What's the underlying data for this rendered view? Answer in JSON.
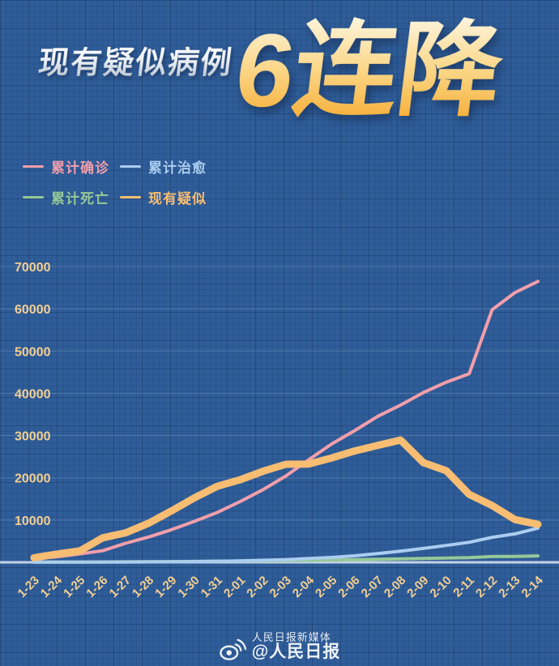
{
  "header": {
    "subtitle": "现有疑似病例",
    "headline": "6连降"
  },
  "legend": [
    {
      "key": "confirmed",
      "label": "累计确诊",
      "color": "#f29fab"
    },
    {
      "key": "cured",
      "label": "累计治愈",
      "color": "#abcdf0"
    },
    {
      "key": "deaths",
      "label": "累计死亡",
      "color": "#95c897"
    },
    {
      "key": "suspected",
      "label": "现有疑似",
      "color": "#f7bd72"
    }
  ],
  "chart_data": {
    "type": "line",
    "title": "现有疑似病例 6连降",
    "xlabel": "",
    "ylabel": "",
    "x": [
      "1-23",
      "1-24",
      "1-25",
      "1-26",
      "1-27",
      "1-28",
      "1-29",
      "1-30",
      "1-31",
      "2-01",
      "2-02",
      "2-03",
      "2-04",
      "2-05",
      "2-06",
      "2-07",
      "2-08",
      "2-09",
      "2-10",
      "2-11",
      "2-12",
      "2-13",
      "2-14"
    ],
    "series": [
      {
        "key": "confirmed",
        "name": "累计确诊",
        "color": "#f29fab",
        "width": 4,
        "values": [
          830,
          1287,
          1975,
          2744,
          4515,
          5974,
          7711,
          9692,
          11791,
          14380,
          17205,
          20438,
          24324,
          28018,
          31161,
          34546,
          37198,
          40171,
          42638,
          44653,
          59804,
          63851,
          66492
        ]
      },
      {
        "key": "cured",
        "name": "累计治愈",
        "color": "#abcdf0",
        "width": 4,
        "values": [
          34,
          38,
          49,
          51,
          60,
          103,
          124,
          171,
          243,
          328,
          475,
          632,
          892,
          1153,
          1540,
          2050,
          2649,
          3281,
          3996,
          4740,
          5911,
          6723,
          8096
        ]
      },
      {
        "key": "deaths",
        "name": "累计死亡",
        "color": "#95c897",
        "width": 4,
        "values": [
          25,
          41,
          56,
          80,
          106,
          132,
          170,
          213,
          259,
          304,
          361,
          425,
          490,
          563,
          636,
          722,
          811,
          908,
          1016,
          1113,
          1367,
          1380,
          1523
        ]
      },
      {
        "key": "suspected",
        "name": "现有疑似",
        "color": "#f7bd72",
        "width": 9,
        "values": [
          1072,
          1965,
          2684,
          5794,
          6973,
          9239,
          12167,
          15238,
          17988,
          19544,
          21558,
          23214,
          23260,
          24702,
          26359,
          27657,
          28942,
          23589,
          21675,
          16067,
          13435,
          10109,
          8969
        ]
      }
    ],
    "ylim": [
      0,
      70000
    ],
    "yticks": [
      10000,
      20000,
      30000,
      40000,
      50000,
      60000,
      70000
    ],
    "grid": true,
    "legend_position": "top-left"
  },
  "theme": {
    "background": "#2f5d99",
    "axis_label_color": "#f3cf92",
    "gridline_color": "rgba(255,255,255,0.18)",
    "baseline_color": "rgba(222,233,246,0.85)"
  },
  "footer": {
    "brand_small": "人民日报新媒体",
    "brand_handle": "@人民日报"
  }
}
